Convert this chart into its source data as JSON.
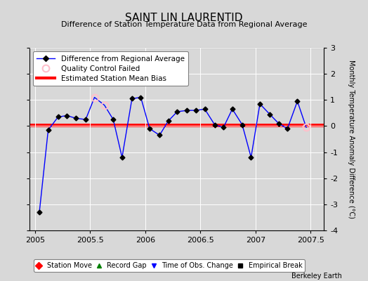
{
  "title": "SAINT LIN LAURENTID",
  "subtitle": "Difference of Station Temperature Data from Regional Average",
  "ylabel": "Monthly Temperature Anomaly Difference (°C)",
  "xlabel_ticks": [
    2005,
    2005.5,
    2006,
    2006.5,
    2007,
    2007.5
  ],
  "ylim": [
    -4,
    3
  ],
  "xlim": [
    2004.95,
    2007.62
  ],
  "bias_line_y": 0.05,
  "background_color": "#d8d8d8",
  "plot_bg_color": "#d8d8d8",
  "x_data": [
    2005.04,
    2005.12,
    2005.21,
    2005.29,
    2005.37,
    2005.46,
    2005.54,
    2005.63,
    2005.71,
    2005.79,
    2005.88,
    2005.96,
    2006.04,
    2006.13,
    2006.21,
    2006.29,
    2006.38,
    2006.46,
    2006.54,
    2006.63,
    2006.71,
    2006.79,
    2006.88,
    2006.96,
    2007.04,
    2007.13,
    2007.21,
    2007.29,
    2007.38,
    2007.46
  ],
  "y_data": [
    -3.3,
    -0.15,
    0.35,
    0.4,
    0.3,
    0.25,
    1.1,
    0.8,
    0.25,
    -1.2,
    1.05,
    1.1,
    -0.1,
    -0.35,
    0.2,
    0.55,
    0.6,
    0.6,
    0.65,
    0.05,
    -0.05,
    0.65,
    0.05,
    -1.2,
    0.85,
    0.45,
    0.1,
    -0.1,
    0.95,
    -0.05
  ],
  "qc_failed_indices": [
    6,
    7,
    29
  ],
  "line_color": "blue",
  "marker_color": "black",
  "bias_color": "red",
  "qc_marker_color": "pink",
  "footer_text": "Berkeley Earth",
  "bottom_legend": [
    {
      "label": "Station Move",
      "color": "red",
      "marker": "D"
    },
    {
      "label": "Record Gap",
      "color": "green",
      "marker": "^"
    },
    {
      "label": "Time of Obs. Change",
      "color": "blue",
      "marker": "v"
    },
    {
      "label": "Empirical Break",
      "color": "black",
      "marker": "s"
    }
  ],
  "title_fontsize": 11,
  "subtitle_fontsize": 8,
  "ylabel_fontsize": 7,
  "tick_fontsize": 8,
  "legend_fontsize": 7.5
}
